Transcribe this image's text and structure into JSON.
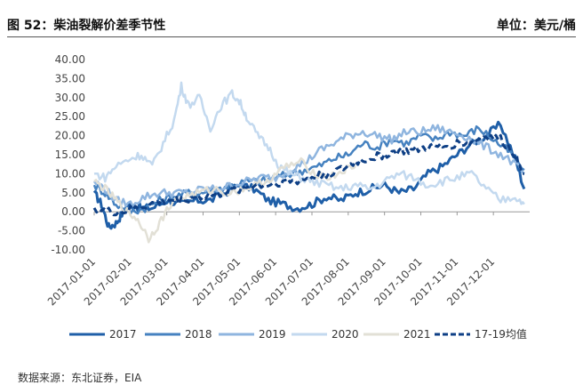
{
  "header": {
    "title": "图 52：柴油裂解价差季节性",
    "unit": "单位：美元/桶"
  },
  "source": "数据来源：东北证券，EIA",
  "chart_data": {
    "type": "line",
    "ylim": [
      -10,
      40
    ],
    "yticks": [
      "40.00",
      "35.00",
      "30.00",
      "25.00",
      "20.00",
      "15.00",
      "10.00",
      "5.00",
      "0.00",
      "-5.00",
      "-10.00"
    ],
    "xticks": [
      "2017-01-01",
      "2017-02-01",
      "2017-03-01",
      "2017-04-01",
      "2017-05-01",
      "2017-06-01",
      "2017-07-01",
      "2017-08-01",
      "2017-09-01",
      "2017-10-01",
      "2017-11-01",
      "2017-12-01"
    ],
    "x_months": [
      0,
      1,
      2,
      3,
      4,
      5,
      6,
      7,
      8,
      9,
      10,
      11
    ],
    "series": [
      {
        "name": "2017",
        "color": "#1f5fa8",
        "width": 3,
        "dash": "",
        "x": [
          0,
          0.2,
          0.4,
          0.6,
          0.8,
          1.0,
          1.3,
          1.6,
          2.0,
          2.4,
          2.8,
          3.2,
          3.6,
          4.0,
          4.4,
          4.8,
          5.2,
          5.6,
          6.0,
          6.4,
          6.8,
          7.2,
          7.6,
          8.0,
          8.4,
          8.8,
          9.2,
          9.6,
          10.0,
          10.4,
          10.8,
          11.2,
          11.6,
          11.85
        ],
        "values": [
          5,
          2,
          -4,
          -3,
          0,
          2,
          1,
          1,
          3,
          2,
          3,
          3,
          5,
          7,
          6,
          3,
          2,
          1,
          2,
          4,
          3,
          5,
          6,
          7,
          5,
          6,
          10,
          12,
          15,
          18,
          20,
          23,
          14,
          6
        ]
      },
      {
        "name": "2018",
        "color": "#4682c0",
        "width": 2.5,
        "dash": "",
        "x": [
          0,
          0.3,
          0.6,
          1.0,
          1.4,
          1.8,
          2.2,
          2.6,
          3.0,
          3.4,
          3.8,
          4.2,
          4.6,
          5.0,
          5.4,
          5.8,
          6.2,
          6.6,
          7.0,
          7.4,
          7.8,
          8.2,
          8.6,
          9.0,
          9.4,
          9.8,
          10.2,
          10.6,
          11.0,
          11.4,
          11.85
        ],
        "values": [
          7,
          5,
          2,
          0,
          1,
          3,
          4,
          5,
          5,
          6,
          7,
          8,
          8,
          9,
          10,
          11,
          12,
          14,
          15,
          18,
          17,
          19,
          18,
          20,
          19,
          21,
          20,
          22,
          19,
          16,
          11
        ]
      },
      {
        "name": "2019",
        "color": "#8fb5df",
        "width": 2.5,
        "dash": "",
        "x": [
          0,
          0.3,
          0.6,
          1.0,
          1.4,
          1.8,
          2.2,
          2.6,
          3.0,
          3.4,
          3.8,
          4.2,
          4.6,
          5.0,
          5.4,
          5.8,
          6.2,
          6.6,
          7.0,
          7.4,
          7.8,
          8.2,
          8.6,
          9.0,
          9.4,
          9.8,
          10.2,
          10.6,
          11.0,
          11.4,
          11.85
        ],
        "values": [
          8,
          6,
          3,
          2,
          4,
          5,
          5,
          5,
          6,
          6,
          7,
          8,
          9,
          9,
          11,
          13,
          16,
          18,
          20,
          21,
          20,
          19,
          21,
          21,
          22,
          21,
          20,
          18,
          16,
          14,
          10
        ]
      },
      {
        "name": "2020",
        "color": "#c3d9ef",
        "width": 2.5,
        "dash": "",
        "x": [
          0,
          0.3,
          0.6,
          1.0,
          1.3,
          1.6,
          1.9,
          2.2,
          2.4,
          2.6,
          2.9,
          3.2,
          3.5,
          3.8,
          4.0,
          4.2,
          4.5,
          4.8,
          5.1,
          5.4,
          5.7,
          6.0,
          6.4,
          6.8,
          7.2,
          7.6,
          8.0,
          8.4,
          8.8,
          9.2,
          9.6,
          10.0,
          10.4,
          10.8,
          11.2,
          11.6,
          11.85
        ],
        "values": [
          10,
          9,
          12,
          14,
          15,
          12,
          18,
          24,
          33,
          28,
          30,
          22,
          28,
          31,
          29,
          25,
          20,
          17,
          12,
          10,
          9,
          8,
          7,
          6,
          7,
          6,
          8,
          10,
          9,
          7,
          8,
          9,
          10,
          6,
          3,
          4,
          2
        ]
      },
      {
        "name": "2021",
        "color": "#e2e0d6",
        "width": 2.5,
        "dash": "",
        "x": [
          0,
          0.3,
          0.6,
          0.9,
          1.2,
          1.5,
          1.8,
          2.1,
          2.5,
          2.9,
          3.3,
          3.7,
          4.1,
          4.5,
          4.9,
          5.3,
          5.7,
          6.1,
          6.5,
          6.9,
          7.2
        ],
        "values": [
          8,
          6,
          3,
          0,
          -2,
          -7,
          -3,
          2,
          4,
          5,
          6,
          5,
          6,
          7,
          9,
          12,
          13,
          10,
          9,
          11,
          12
        ]
      },
      {
        "name": "17-19均值",
        "color": "#0e3f85",
        "width": 3,
        "dash": "7,4",
        "x": [
          0,
          0.4,
          0.8,
          1.2,
          1.6,
          2.0,
          2.4,
          2.8,
          3.2,
          3.6,
          4.0,
          4.4,
          4.8,
          5.2,
          5.6,
          6.0,
          6.4,
          6.8,
          7.2,
          7.6,
          8.0,
          8.4,
          8.8,
          9.2,
          9.6,
          10.0,
          10.4,
          10.8,
          11.2,
          11.6,
          11.85
        ],
        "values": [
          1,
          0,
          0,
          1,
          2,
          3,
          3,
          4,
          4,
          5,
          6,
          7,
          7,
          8,
          8,
          9,
          10,
          11,
          13,
          14,
          15,
          16,
          16,
          17,
          17,
          18,
          18,
          20,
          19,
          15,
          10
        ]
      }
    ]
  }
}
